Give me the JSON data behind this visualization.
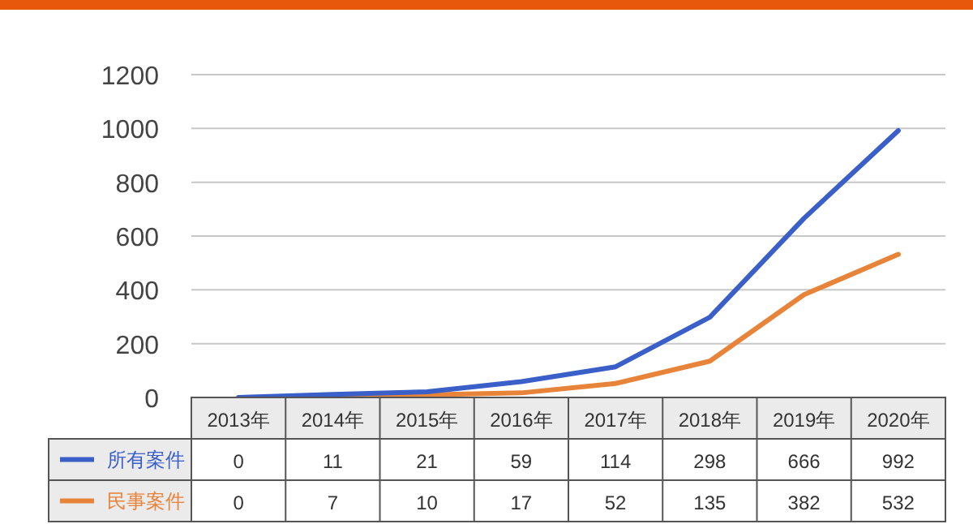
{
  "chart_data": {
    "type": "line",
    "categories": [
      "2013年",
      "2014年",
      "2015年",
      "2016年",
      "2017年",
      "2018年",
      "2019年",
      "2020年"
    ],
    "series": [
      {
        "name": "所有案件",
        "color": "#3a5fc8",
        "values": [
          0,
          11,
          21,
          59,
          114,
          298,
          666,
          992
        ]
      },
      {
        "name": "民事案件",
        "color": "#e8833a",
        "values": [
          null,
          7,
          10,
          17,
          52,
          135,
          382,
          532
        ],
        "value_labels": [
          "0",
          "7",
          "10",
          "17",
          "52",
          "135",
          "382",
          "532"
        ]
      }
    ],
    "ylim": [
      0,
      1200
    ],
    "yticks": [
      0,
      200,
      400,
      600,
      800,
      1000,
      1200
    ],
    "grid": "y",
    "legend": "bottom",
    "data_labels": true,
    "marker": "none",
    "line_style": "solid"
  }
}
